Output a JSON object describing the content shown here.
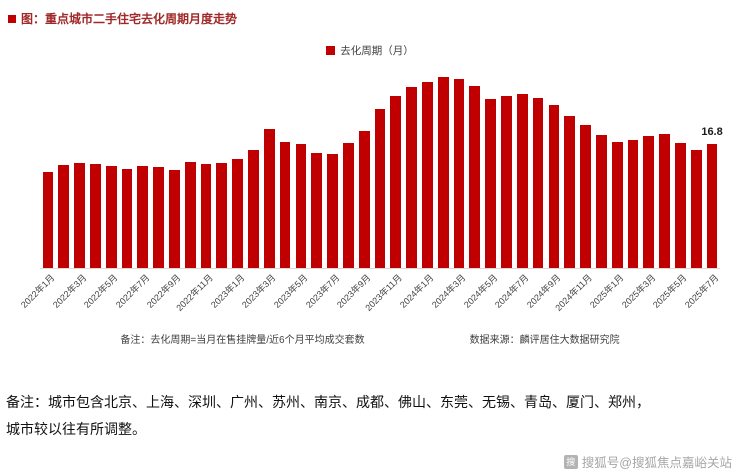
{
  "figure": {
    "title": "图：重点城市二手住宅去化周期月度走势",
    "legend_label": "去化周期（月）",
    "calc_note": "备注：去化周期=当月在售挂牌量/近6个月平均成交套数",
    "source": "数据来源：麟评居住大数据研究院"
  },
  "chart_data": {
    "type": "bar",
    "title": "重点城市二手住宅去化周期月度走势",
    "ylabel": "去化周期（月）",
    "bar_color": "#c00000",
    "ylim": [
      0,
      27
    ],
    "grid": false,
    "legend_position": "top-center",
    "tick_every": 2,
    "x": [
      "2022年1月",
      "2022年2月",
      "2022年3月",
      "2022年4月",
      "2022年5月",
      "2022年6月",
      "2022年7月",
      "2022年8月",
      "2022年9月",
      "2022年10月",
      "2022年11月",
      "2022年12月",
      "2023年1月",
      "2023年2月",
      "2023年3月",
      "2023年4月",
      "2023年5月",
      "2023年6月",
      "2023年7月",
      "2023年8月",
      "2023年9月",
      "2023年10月",
      "2023年11月",
      "2023年12月",
      "2024年1月",
      "2024年2月",
      "2024年3月",
      "2024年4月",
      "2024年5月",
      "2024年6月",
      "2024年7月",
      "2024年8月",
      "2024年9月",
      "2024年10月",
      "2024年11月",
      "2024年12月",
      "2025年1月",
      "2025年2月",
      "2025年3月",
      "2025年4月",
      "2025年5月",
      "2025年6月",
      "2025年7月"
    ],
    "values": [
      13.0,
      13.9,
      14.2,
      14.0,
      13.8,
      13.4,
      13.8,
      13.6,
      13.3,
      14.3,
      14.0,
      14.2,
      14.8,
      16.0,
      18.8,
      17.0,
      16.8,
      15.6,
      15.4,
      16.9,
      18.5,
      21.5,
      23.3,
      24.5,
      25.2,
      25.8,
      25.6,
      24.6,
      22.8,
      23.3,
      23.5,
      23.0,
      22.0,
      20.5,
      19.3,
      18.0,
      17.0,
      17.3,
      17.9,
      18.1,
      16.9,
      16.0,
      16.8
    ],
    "annotation": {
      "index": 42,
      "text": "16.8"
    }
  },
  "notes": {
    "line1": "备注：城市包含北京、上海、深圳、广州、苏州、南京、成都、佛山、东莞、无锡、青岛、厦门、郑州，",
    "line2": "城市较以往有所调整。"
  },
  "watermark": {
    "icon_glyph": "搜",
    "text": "搜狐号@搜狐焦点嘉峪关站"
  }
}
